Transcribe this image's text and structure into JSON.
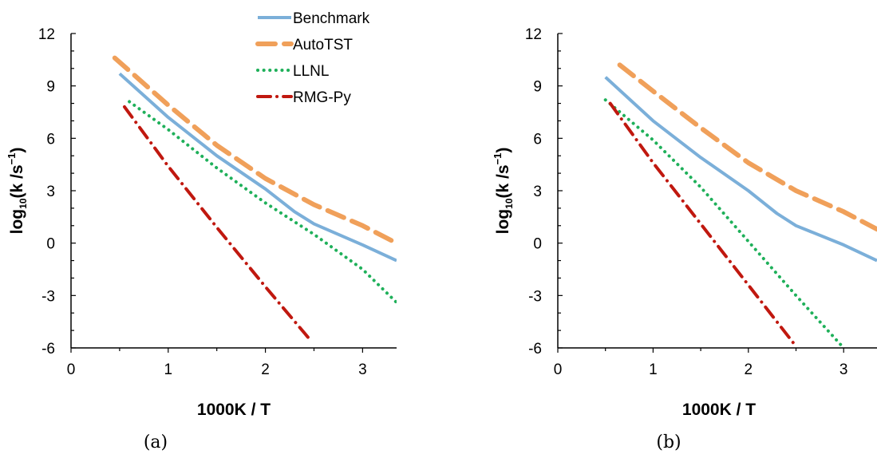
{
  "chart_data": [
    {
      "type": "line",
      "caption": "(a)",
      "xlabel": "1000K / T",
      "ylabel_main": "log",
      "ylabel_sub": "10",
      "ylabel_rest": "(k /s",
      "ylabel_sup": "−1",
      "ylabel_close": ")",
      "xlim": [
        0,
        3.35
      ],
      "ylim": [
        -6,
        12
      ],
      "xticks": [
        "0",
        "1",
        "2",
        "3"
      ],
      "yticks": [
        "-6",
        "-3",
        "0",
        "3",
        "6",
        "9",
        "12"
      ],
      "grid": false,
      "legend_position": "top-right",
      "series": [
        {
          "name": "Benchmark",
          "color": "#7bafd9",
          "style": "solid",
          "x": [
            0.5,
            1.0,
            1.5,
            2.0,
            2.3,
            2.5,
            3.0,
            3.35
          ],
          "y": [
            9.7,
            7.2,
            5.0,
            3.1,
            1.8,
            1.1,
            -0.1,
            -1.0
          ]
        },
        {
          "name": "AutoTST",
          "color": "#f0a05a",
          "style": "dashed",
          "x": [
            0.45,
            1.0,
            1.5,
            2.0,
            2.5,
            3.0,
            3.35
          ],
          "y": [
            10.6,
            7.9,
            5.6,
            3.7,
            2.2,
            1.0,
            0.0
          ]
        },
        {
          "name": "LLNL",
          "color": "#1fb05a",
          "style": "dotted",
          "x": [
            0.6,
            1.0,
            1.5,
            2.0,
            2.5,
            3.0,
            3.35
          ],
          "y": [
            8.1,
            6.5,
            4.3,
            2.3,
            0.5,
            -1.5,
            -3.4
          ]
        },
        {
          "name": "RMG-Py",
          "color": "#c0180f",
          "style": "dashdot",
          "x": [
            0.55,
            1.0,
            1.5,
            2.0,
            2.47
          ],
          "y": [
            7.8,
            4.4,
            0.9,
            -2.5,
            -5.6
          ]
        }
      ]
    },
    {
      "type": "line",
      "caption": "(b)",
      "xlabel": "1000K / T",
      "ylabel_main": "log",
      "ylabel_sub": "10",
      "ylabel_rest": "(k /s",
      "ylabel_sup": "−1",
      "ylabel_close": ")",
      "xlim": [
        0,
        3.35
      ],
      "ylim": [
        -6,
        12
      ],
      "xticks": [
        "0",
        "1",
        "2",
        "3"
      ],
      "yticks": [
        "-6",
        "-3",
        "0",
        "3",
        "6",
        "9",
        "12"
      ],
      "grid": false,
      "series": [
        {
          "name": "Benchmark",
          "color": "#7bafd9",
          "style": "solid",
          "x": [
            0.5,
            1.0,
            1.5,
            2.0,
            2.3,
            2.5,
            3.0,
            3.35
          ],
          "y": [
            9.5,
            7.0,
            4.9,
            3.0,
            1.7,
            1.0,
            -0.1,
            -1.0
          ]
        },
        {
          "name": "AutoTST",
          "color": "#f0a05a",
          "style": "dashed",
          "x": [
            0.65,
            1.0,
            1.5,
            2.0,
            2.5,
            3.0,
            3.35
          ],
          "y": [
            10.2,
            8.7,
            6.6,
            4.6,
            3.0,
            1.8,
            0.8
          ]
        },
        {
          "name": "LLNL",
          "color": "#1fb05a",
          "style": "dotted",
          "x": [
            0.5,
            1.0,
            1.5,
            2.0,
            2.5,
            3.0
          ],
          "y": [
            8.2,
            5.9,
            3.2,
            0.1,
            -3.0,
            -6.0
          ]
        },
        {
          "name": "RMG-Py",
          "color": "#c0180f",
          "style": "dashdot",
          "x": [
            0.55,
            1.0,
            1.5,
            2.0,
            2.47
          ],
          "y": [
            8.0,
            4.6,
            1.1,
            -2.4,
            -5.7
          ]
        }
      ]
    }
  ]
}
